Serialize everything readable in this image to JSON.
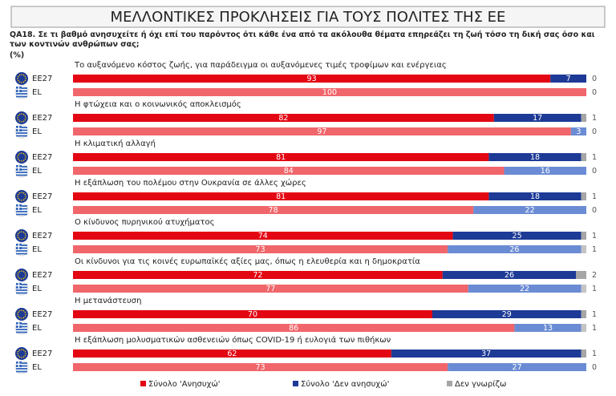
{
  "chart_data": {
    "type": "stacked-bar",
    "title": "ΜΕΛΛΟΝΤΙΚΕΣ ΠΡΟΚΛΗΣΕΙΣ ΓΙΑ ΤΟΥΣ ΠΟΛΙΤΕΣ ΤΗΣ ΕΕ",
    "subtitle": "QA18. Σε τι βαθμό ανησυχείτε ή όχι επί του παρόντος ότι κάθε ένα από τα ακόλουθα θέματα επηρεάζει τη ζωή τόσο τη δική σας όσο και των κοντινών ανθρώπων σας;",
    "unit": "(%)",
    "xlim": [
      0,
      100
    ],
    "rows": [
      "EE27",
      "EL"
    ],
    "categories": [
      "Το αυξανόμενο κόστος ζωής, για παράδειγμα οι αυξανόμενες τιμές τροφίμων και ενέργειας",
      "Η φτώχεια και ο κοινωνικός αποκλεισμός",
      "Η κλιματική αλλαγή",
      "Η εξάπλωση του πολέμου στην Ουκρανία σε άλλες χώρες",
      "Ο κίνδυνος πυρηνικού ατυχήματος",
      "Οι κίνδυνοι για τις κοινές ευρωπαϊκές αξίες μας, όπως η ελευθερία και η δημοκρατία",
      "Η μετανάστευση",
      "Η εξάπλωση μολυσματικών ασθενειών όπως COVID-19 ή ευλογιά των πιθήκων"
    ],
    "series": [
      {
        "name": "Σύνολο 'Ανησυχώ'",
        "colors": [
          "#e30613",
          "#f0666b"
        ],
        "values": [
          [
            93,
            100
          ],
          [
            82,
            97
          ],
          [
            81,
            84
          ],
          [
            81,
            78
          ],
          [
            74,
            73
          ],
          [
            72,
            77
          ],
          [
            70,
            86
          ],
          [
            62,
            73
          ]
        ]
      },
      {
        "name": "Σύνολο 'Δεν ανησυχώ'",
        "colors": [
          "#1d3a96",
          "#6b8cd4"
        ],
        "values": [
          [
            7,
            0
          ],
          [
            17,
            3
          ],
          [
            18,
            16
          ],
          [
            18,
            22
          ],
          [
            25,
            26
          ],
          [
            26,
            22
          ],
          [
            29,
            13
          ],
          [
            37,
            27
          ]
        ]
      },
      {
        "name": "Δεν γνωρίζω",
        "colors": [
          "#a6a6a6",
          "#c4c4c4"
        ],
        "values": [
          [
            0,
            0
          ],
          [
            1,
            0
          ],
          [
            1,
            0
          ],
          [
            1,
            0
          ],
          [
            1,
            1
          ],
          [
            2,
            1
          ],
          [
            1,
            1
          ],
          [
            1,
            0
          ]
        ]
      }
    ]
  }
}
